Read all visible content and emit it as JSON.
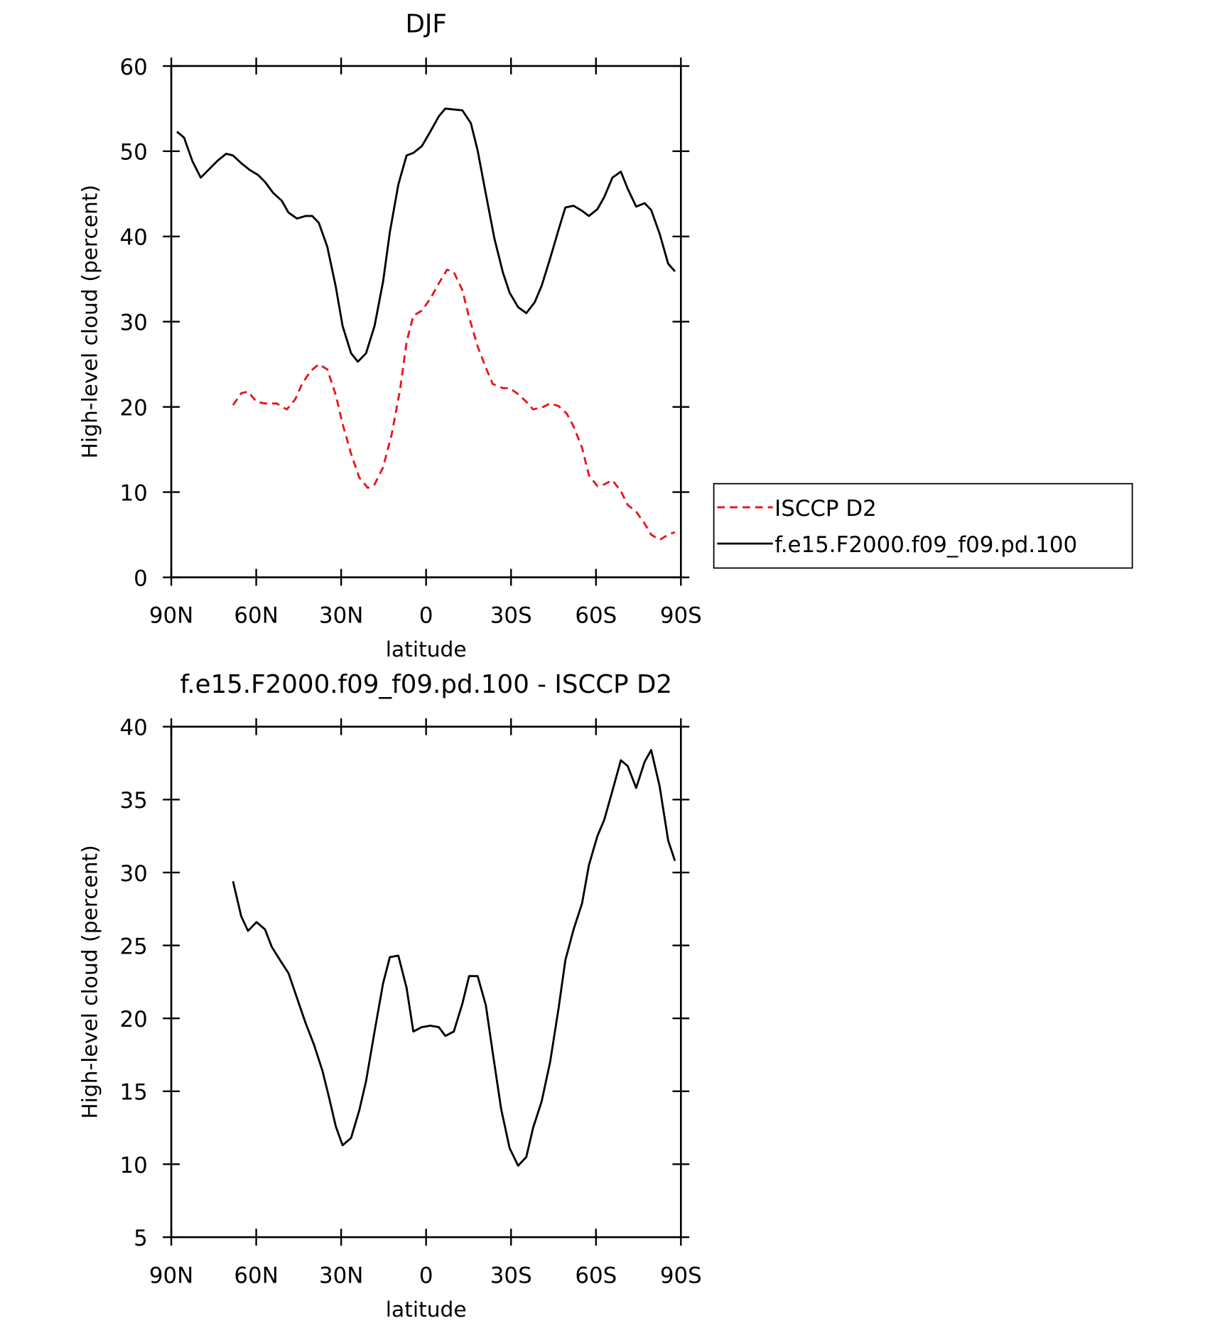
{
  "chart_data": [
    {
      "type": "line",
      "title": "DJF",
      "xlabel": "latitude",
      "ylabel": "High-level cloud (percent)",
      "xlim": [
        90,
        -90
      ],
      "xticks": [
        {
          "value": 90,
          "label": "90N"
        },
        {
          "value": 60,
          "label": "60N"
        },
        {
          "value": 30,
          "label": "30N"
        },
        0,
        {
          "value": -30,
          "label": "30S"
        },
        {
          "value": -60,
          "label": "60S"
        },
        {
          "value": -90,
          "label": "90S"
        }
      ],
      "ylim": [
        0,
        60
      ],
      "yticks": [
        0,
        10,
        20,
        30,
        40,
        50,
        60
      ],
      "legend": "right",
      "series": [
        {
          "name": "ISCCP D2",
          "color": "#e8141c",
          "dash": true,
          "x": [
            68.2,
            65.3,
            62.9,
            59.9,
            56.9,
            52.8,
            49.2,
            46.2,
            43.8,
            40.8,
            37.9,
            34.9,
            31.9,
            29.5,
            26.5,
            23.6,
            20.6,
            18.2,
            15.2,
            12.2,
            9.2,
            6.9,
            4.5,
            1.5,
            -1.5,
            -4.5,
            -7.4,
            -9.8,
            -12.8,
            -15.2,
            -18.2,
            -21.1,
            -23.5,
            -27.1,
            -29.5,
            -32.5,
            -35.4,
            -37.8,
            -41.4,
            -43.8,
            -46.8,
            -49.7,
            -52.1,
            -55.1,
            -57.5,
            -60.5,
            -62.9,
            -65.8,
            -68.8,
            -71.2,
            -74.2,
            -77.2,
            -79.5,
            -82.5,
            -85.5,
            -87.9
          ],
          "values": [
            20.2,
            21.6,
            21.8,
            20.6,
            20.4,
            20.4,
            19.7,
            20.9,
            22.7,
            24.2,
            25.0,
            24.4,
            21.4,
            18.0,
            14.5,
            11.7,
            10.5,
            10.9,
            12.9,
            16.7,
            22.0,
            27.6,
            30.7,
            31.3,
            32.7,
            34.5,
            36.1,
            35.8,
            33.7,
            30.5,
            27.1,
            24.6,
            22.7,
            22.2,
            22.2,
            21.5,
            20.6,
            19.7,
            20.0,
            20.4,
            20.1,
            19.2,
            17.7,
            15.2,
            12.0,
            10.7,
            10.9,
            11.4,
            10.1,
            8.5,
            7.7,
            6.3,
            5.0,
            4.4,
            5.0,
            5.3
          ]
        },
        {
          "name": "f.e15.F2000.f09_f09.pd.100",
          "color": "#000000",
          "dash": false,
          "x": [
            88,
            85.5,
            82.5,
            79.6,
            76.6,
            73.6,
            70.6,
            68.2,
            65.3,
            62.3,
            59.3,
            56.9,
            54,
            51,
            48.6,
            45.6,
            42.6,
            40.2,
            37.9,
            34.9,
            31.9,
            29.5,
            26.5,
            24.1,
            21.2,
            18.2,
            15.2,
            12.8,
            9.8,
            6.9,
            4.5,
            1.5,
            -1.5,
            -4.5,
            -6.8,
            -9.8,
            -12.8,
            -15.8,
            -18.2,
            -21.1,
            -24.1,
            -27.1,
            -29.5,
            -32.5,
            -35.4,
            -38.4,
            -40.8,
            -43.8,
            -46.8,
            -49.2,
            -52.1,
            -55.1,
            -57.5,
            -60.5,
            -62.9,
            -65.8,
            -68.8,
            -71.2,
            -74.2,
            -77.2,
            -79.5,
            -82.5,
            -85.5,
            -87.9
          ],
          "values": [
            52.3,
            51.6,
            48.8,
            46.9,
            47.9,
            48.9,
            49.7,
            49.5,
            48.6,
            47.8,
            47.2,
            46.4,
            45.1,
            44.2,
            42.8,
            42.1,
            42.4,
            42.4,
            41.6,
            38.8,
            34.1,
            29.5,
            26.3,
            25.3,
            26.3,
            29.5,
            34.7,
            40.5,
            46.1,
            49.5,
            49.8,
            50.6,
            52.3,
            54.1,
            55.0,
            54.9,
            54.8,
            53.3,
            50.1,
            45.0,
            39.8,
            35.8,
            33.4,
            31.7,
            31.0,
            32.3,
            34.2,
            37.4,
            40.8,
            43.4,
            43.6,
            43.0,
            42.4,
            43.2,
            44.6,
            46.9,
            47.6,
            45.6,
            43.5,
            43.9,
            43.1,
            40.3,
            36.8,
            35.9
          ]
        }
      ]
    },
    {
      "type": "line",
      "title": "f.e15.F2000.f09_f09.pd.100 - ISCCP D2",
      "xlabel": "latitude",
      "ylabel": "High-level cloud (percent)",
      "xlim": [
        90,
        -90
      ],
      "xticks": [
        {
          "value": 90,
          "label": "90N"
        },
        {
          "value": 60,
          "label": "60N"
        },
        {
          "value": 30,
          "label": "30N"
        },
        0,
        {
          "value": -30,
          "label": "30S"
        },
        {
          "value": -60,
          "label": "60S"
        },
        {
          "value": -90,
          "label": "90S"
        }
      ],
      "ylim": [
        5,
        40
      ],
      "yticks": [
        5,
        10,
        15,
        20,
        25,
        30,
        35,
        40
      ],
      "series": [
        {
          "color": "#000000",
          "dash": false,
          "x": [
            68.2,
            65.3,
            62.9,
            59.9,
            56.9,
            54.5,
            51.6,
            48.6,
            45.6,
            42.6,
            39.6,
            36.6,
            34.3,
            31.9,
            29.5,
            26.5,
            23.6,
            21.2,
            18.2,
            15.2,
            12.8,
            9.8,
            6.9,
            4.5,
            1.5,
            -1.5,
            -4.5,
            -6.8,
            -9.8,
            -12.8,
            -15.2,
            -18.2,
            -21.1,
            -23.5,
            -26.5,
            -29.5,
            -32.5,
            -35.4,
            -37.8,
            -40.8,
            -43.8,
            -46.8,
            -49.2,
            -52.1,
            -55.1,
            -57.5,
            -60.5,
            -62.9,
            -65.8,
            -68.8,
            -71.2,
            -74.2,
            -77.2,
            -79.5,
            -82.5,
            -85.5,
            -87.9
          ],
          "values": [
            29.4,
            27.0,
            26.0,
            26.6,
            26.1,
            24.9,
            24.0,
            23.1,
            21.4,
            19.7,
            18.2,
            16.4,
            14.6,
            12.6,
            11.3,
            11.8,
            13.7,
            15.7,
            19.1,
            22.4,
            24.2,
            24.3,
            22.1,
            19.1,
            19.4,
            19.5,
            19.4,
            18.8,
            19.1,
            21.0,
            22.9,
            22.9,
            20.9,
            17.7,
            13.8,
            11.1,
            9.9,
            10.5,
            12.5,
            14.3,
            17.0,
            20.7,
            24.0,
            26.1,
            27.9,
            30.5,
            32.5,
            33.6,
            35.6,
            37.7,
            37.3,
            35.8,
            37.6,
            38.4,
            35.9,
            32.2,
            30.8
          ]
        }
      ]
    }
  ]
}
